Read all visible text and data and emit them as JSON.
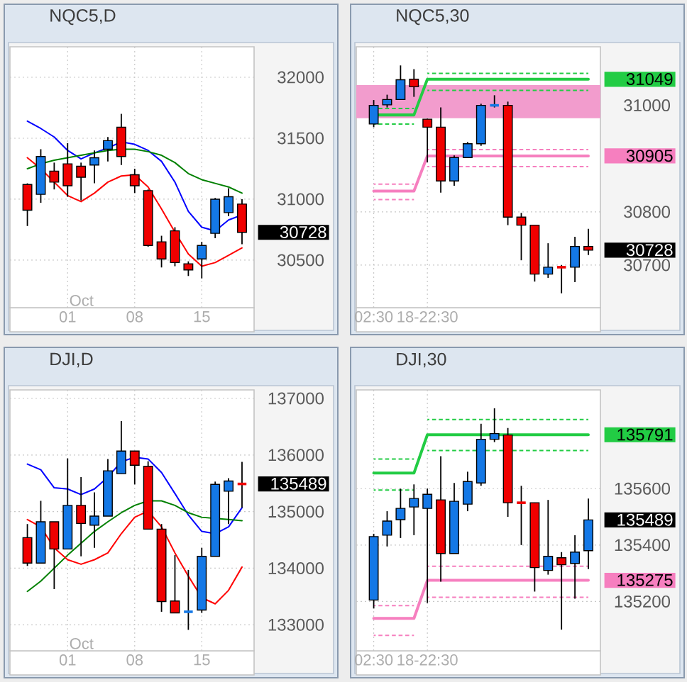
{
  "chart_data": [
    {
      "type": "candlestick",
      "title": "NQC5,D",
      "categories": [
        null,
        null,
        null,
        "01",
        null,
        null,
        null,
        null,
        "08",
        null,
        null,
        null,
        null,
        "15",
        null,
        null,
        null
      ],
      "ohlc": [
        [
          31120,
          31130,
          30780,
          30910
        ],
        [
          31040,
          31410,
          30970,
          31350
        ],
        [
          31230,
          31300,
          31080,
          31140
        ],
        [
          31290,
          31460,
          31020,
          31110
        ],
        [
          31270,
          31300,
          30990,
          31180
        ],
        [
          31280,
          31400,
          31130,
          31340
        ],
        [
          31410,
          31510,
          31310,
          31480
        ],
        [
          31590,
          31700,
          31280,
          31350
        ],
        [
          31200,
          31250,
          31050,
          31110
        ],
        [
          31070,
          31080,
          30610,
          30620
        ],
        [
          30650,
          30700,
          30440,
          30510
        ],
        [
          30740,
          30770,
          30450,
          30480
        ],
        [
          30470,
          30490,
          30370,
          30420
        ],
        [
          30510,
          30650,
          30350,
          30620
        ],
        [
          30720,
          31010,
          30680,
          31000
        ],
        [
          30890,
          31090,
          30860,
          31020
        ],
        [
          30960,
          31000,
          30630,
          30728
        ]
      ],
      "colors": [
        "#f00000",
        "#1478e6",
        "#f00000",
        "#f00000",
        "#f00000",
        "#1478e6",
        "#1478e6",
        "#f00000",
        "#f00000",
        "#f00000",
        "#f00000",
        "#f00000",
        "#f00000",
        "#1478e6",
        "#1478e6",
        "#1478e6",
        "#f00000"
      ],
      "series": [
        {
          "type": "line",
          "color": "#0000ff",
          "values": [
            31640,
            31580,
            31510,
            31400,
            31330,
            31380,
            31420,
            31470,
            31450,
            31400,
            31310,
            31140,
            30900,
            30770,
            30740,
            30830,
            30870
          ]
        },
        {
          "type": "line",
          "color": "#008000",
          "values": [
            31250,
            31290,
            31320,
            31340,
            31360,
            31380,
            31400,
            31410,
            31410,
            31390,
            31360,
            31300,
            31210,
            31160,
            31130,
            31100,
            31050
          ]
        },
        {
          "type": "line",
          "color": "#ff0000",
          "values": [
            31340,
            31250,
            31140,
            31030,
            30980,
            31050,
            31140,
            31190,
            31200,
            31100,
            30920,
            30730,
            30550,
            30450,
            30480,
            30540,
            30600
          ]
        }
      ],
      "ylim": [
        30110,
        32250
      ],
      "yticks": [
        30500,
        30728,
        31000,
        31500,
        32000
      ],
      "grid": true,
      "annotations": [
        "Oct"
      ]
    },
    {
      "type": "candlestick",
      "title": "NQC5,30",
      "categories": [
        "02:30",
        null,
        null,
        null,
        "18-22:30",
        null,
        null,
        null,
        null,
        null,
        null,
        null,
        null,
        null,
        null,
        null,
        null
      ],
      "ohlc": [
        [
          30965,
          31010,
          30959,
          31000
        ],
        [
          31001,
          31020,
          30996,
          31011
        ],
        [
          31011,
          31075,
          31011,
          31048
        ],
        [
          31049,
          31068,
          31016,
          31035
        ],
        [
          30974,
          30975,
          30893,
          30959
        ],
        [
          30959,
          30996,
          30836,
          30858
        ],
        [
          30858,
          30906,
          30849,
          30902
        ],
        [
          30902,
          30931,
          30902,
          30928
        ],
        [
          30928,
          31003,
          30924,
          31000
        ],
        [
          31000,
          31019,
          30996,
          31000
        ],
        [
          31000,
          31007,
          30775,
          30790
        ],
        [
          30790,
          30798,
          30709,
          30775
        ],
        [
          30775,
          30775,
          30669,
          30683
        ],
        [
          30683,
          30741,
          30676,
          30696
        ],
        [
          30696,
          30700,
          30647,
          30696
        ],
        [
          30696,
          30753,
          30668,
          30735
        ],
        [
          30735,
          30768,
          30719,
          30728
        ]
      ],
      "colors": [
        "#1478e6",
        "#1478e6",
        "#1478e6",
        "#f00000",
        "#f00000",
        "#f00000",
        "#1478e6",
        "#1478e6",
        "#1478e6",
        "#1478e6",
        "#f00000",
        "#f00000",
        "#f00000",
        "#1478e6",
        "#f00000",
        "#1478e6",
        "#f00000"
      ],
      "series": [
        {
          "type": "line",
          "color": "#22cc44",
          "line_style": "dashed",
          "values": [
            30994,
            30994,
            30994,
            30994,
            null,
            null,
            null,
            null,
            null,
            null,
            null,
            null,
            null,
            null,
            null,
            null,
            null
          ]
        },
        {
          "type": "line",
          "color": "#22cc44",
          "line_style": "dashed",
          "values": [
            30965,
            30965,
            30965,
            30965,
            null,
            null,
            null,
            null,
            null,
            null,
            null,
            null,
            null,
            null,
            null,
            null,
            null
          ]
        },
        {
          "type": "line",
          "color": "#22cc44",
          "line_style": "dashed",
          "values": [
            null,
            null,
            null,
            null,
            31060,
            31060,
            31060,
            31060,
            31060,
            31060,
            31060,
            31060,
            31060,
            31060,
            31060,
            31060,
            31060
          ]
        },
        {
          "type": "line",
          "color": "#22cc44",
          "line_style": "dashed",
          "values": [
            null,
            null,
            null,
            null,
            31028,
            31028,
            31028,
            31028,
            31028,
            31028,
            31028,
            31028,
            31028,
            31028,
            31028,
            31028,
            31028
          ]
        },
        {
          "type": "line",
          "color": "#22cc44",
          "line_style": "solid",
          "values": [
            30982,
            30982,
            30982,
            30982,
            31049,
            31049,
            31049,
            31049,
            31049,
            31049,
            31049,
            31049,
            31049,
            31049,
            31049,
            31049,
            31049
          ]
        },
        {
          "type": "line",
          "color": "#f67fbf",
          "line_style": "dashed",
          "values": [
            30852,
            30852,
            30852,
            30852,
            null,
            null,
            null,
            null,
            null,
            null,
            null,
            null,
            null,
            null,
            null,
            null,
            null
          ]
        },
        {
          "type": "line",
          "color": "#f67fbf",
          "line_style": "dashed",
          "values": [
            30823,
            30823,
            30823,
            30823,
            null,
            null,
            null,
            null,
            null,
            null,
            null,
            null,
            null,
            null,
            null,
            null,
            null
          ]
        },
        {
          "type": "line",
          "color": "#f67fbf",
          "line_style": "dashed",
          "values": [
            null,
            null,
            null,
            null,
            30917,
            30917,
            30917,
            30917,
            30917,
            30917,
            30917,
            30917,
            30917,
            30917,
            30917,
            30917,
            30917
          ]
        },
        {
          "type": "line",
          "color": "#f67fbf",
          "line_style": "dashed",
          "values": [
            null,
            null,
            null,
            null,
            30885,
            30885,
            30885,
            30885,
            30885,
            30885,
            30885,
            30885,
            30885,
            30885,
            30885,
            30885,
            30885
          ]
        },
        {
          "type": "line",
          "color": "#f67fbf",
          "line_style": "solid",
          "values": [
            30839,
            30839,
            30839,
            30839,
            30905,
            30905,
            30905,
            30905,
            30905,
            30905,
            30905,
            30905,
            30905,
            30905,
            30905,
            30905,
            30905
          ]
        }
      ],
      "bands": [
        {
          "axis": "y",
          "from": 30976,
          "to": 31038,
          "color": "#f29ccd"
        }
      ],
      "ylim": [
        30620,
        31110
      ],
      "yticks": [
        30700,
        30728,
        30800,
        30905,
        31000,
        31049
      ],
      "grid": true
    },
    {
      "type": "candlestick",
      "title": "DJI,D",
      "categories": [
        null,
        null,
        null,
        "01",
        null,
        null,
        null,
        null,
        "08",
        null,
        null,
        null,
        null,
        "15",
        null,
        null,
        null
      ],
      "ohlc": [
        [
          134540,
          134780,
          134040,
          134090
        ],
        [
          134090,
          135190,
          134090,
          134820
        ],
        [
          134820,
          134820,
          133630,
          134340
        ],
        [
          134340,
          135940,
          134340,
          135110
        ],
        [
          135110,
          135610,
          134210,
          134790
        ],
        [
          134760,
          135340,
          134360,
          134920
        ],
        [
          134920,
          135930,
          134920,
          135720
        ],
        [
          135670,
          136600,
          135670,
          136070
        ],
        [
          136070,
          136070,
          135480,
          135820
        ],
        [
          135800,
          135890,
          134690,
          134690
        ],
        [
          134690,
          134780,
          133230,
          133410
        ],
        [
          133420,
          134230,
          133210,
          133210
        ],
        [
          133230,
          133970,
          132910,
          133230
        ],
        [
          133260,
          134360,
          133210,
          134210
        ],
        [
          134210,
          135530,
          134210,
          135480
        ],
        [
          135360,
          135590,
          134780,
          135540
        ],
        [
          135489,
          135880,
          135070,
          135489
        ]
      ],
      "colors": [
        "#f00000",
        "#1478e6",
        "#f00000",
        "#1478e6",
        "#f00000",
        "#1478e6",
        "#1478e6",
        "#1478e6",
        "#f00000",
        "#f00000",
        "#f00000",
        "#f00000",
        "#1478e6",
        "#1478e6",
        "#1478e6",
        "#1478e6",
        "#f00000"
      ],
      "series": [
        {
          "type": "line",
          "color": "#0000ff",
          "values": [
            135840,
            135740,
            135420,
            135400,
            135300,
            135400,
            135610,
            135880,
            135960,
            135930,
            135690,
            135320,
            134940,
            134650,
            134610,
            134730,
            135070
          ]
        },
        {
          "type": "line",
          "color": "#008000",
          "values": [
            133590,
            133770,
            134000,
            134230,
            134440,
            134650,
            134820,
            134980,
            135110,
            135190,
            135190,
            135110,
            134980,
            134900,
            134880,
            134860,
            134840
          ]
        },
        {
          "type": "line",
          "color": "#ff0000",
          "values": [
            134860,
            134730,
            134360,
            134150,
            134070,
            134150,
            134270,
            134610,
            134900,
            135010,
            134730,
            134270,
            133860,
            133480,
            133370,
            133610,
            134020
          ]
        }
      ],
      "ylim": [
        132540,
        137150
      ],
      "yticks": [
        133000,
        134000,
        135000,
        135489,
        136000,
        137000
      ],
      "grid": true,
      "annotations": [
        "Oct"
      ]
    },
    {
      "type": "candlestick",
      "title": "DJI,30",
      "categories": [
        "02:30",
        null,
        null,
        null,
        "18-22:30",
        null,
        null,
        null,
        null,
        null,
        null,
        null,
        null,
        null,
        null,
        null,
        null
      ],
      "ohlc": [
        [
          135205,
          135440,
          135175,
          135430
        ],
        [
          135435,
          135520,
          135395,
          135485
        ],
        [
          135490,
          135600,
          135425,
          135530
        ],
        [
          135535,
          135615,
          135435,
          135565
        ],
        [
          135530,
          135600,
          135195,
          135580
        ],
        [
          135560,
          135715,
          135270,
          135370
        ],
        [
          135370,
          135620,
          135370,
          135555
        ],
        [
          135545,
          135660,
          135520,
          135625
        ],
        [
          135620,
          135830,
          135610,
          135775
        ],
        [
          135775,
          135885,
          135765,
          135795
        ],
        [
          135790,
          135815,
          135500,
          135550
        ],
        [
          135550,
          135610,
          135400,
          135550
        ],
        [
          135550,
          135550,
          135235,
          135320
        ],
        [
          135310,
          135560,
          135295,
          135360
        ],
        [
          135355,
          135375,
          135100,
          135330
        ],
        [
          135335,
          135435,
          135210,
          135375
        ],
        [
          135380,
          135565,
          135315,
          135489
        ]
      ],
      "colors": [
        "#1478e6",
        "#1478e6",
        "#1478e6",
        "#1478e6",
        "#1478e6",
        "#f00000",
        "#1478e6",
        "#1478e6",
        "#1478e6",
        "#1478e6",
        "#f00000",
        "#f00000",
        "#f00000",
        "#1478e6",
        "#f00000",
        "#1478e6",
        "#1478e6"
      ],
      "series": [
        {
          "type": "line",
          "color": "#22cc44",
          "line_style": "dashed",
          "values": [
            135705,
            135705,
            135705,
            135705,
            null,
            null,
            null,
            null,
            null,
            null,
            null,
            null,
            null,
            null,
            null,
            null,
            null
          ]
        },
        {
          "type": "line",
          "color": "#22cc44",
          "line_style": "dashed",
          "values": [
            135595,
            135595,
            135595,
            135595,
            null,
            null,
            null,
            null,
            null,
            null,
            null,
            null,
            null,
            null,
            null,
            null,
            null
          ]
        },
        {
          "type": "line",
          "color": "#22cc44",
          "line_style": "dashed",
          "values": [
            null,
            null,
            null,
            null,
            135845,
            135845,
            135845,
            135845,
            135845,
            135845,
            135845,
            135845,
            135845,
            135845,
            135845,
            135845,
            135845
          ]
        },
        {
          "type": "line",
          "color": "#22cc44",
          "line_style": "dashed",
          "values": [
            null,
            null,
            null,
            null,
            135735,
            135735,
            135735,
            135735,
            135735,
            135735,
            135735,
            135735,
            135735,
            135735,
            135735,
            135735,
            135735
          ]
        },
        {
          "type": "line",
          "color": "#22cc44",
          "line_style": "solid",
          "values": [
            135655,
            135655,
            135655,
            135655,
            135791,
            135791,
            135791,
            135791,
            135791,
            135791,
            135791,
            135791,
            135791,
            135791,
            135791,
            135791,
            135791
          ]
        },
        {
          "type": "line",
          "color": "#f67fbf",
          "line_style": "dashed",
          "values": [
            135185,
            135185,
            135185,
            135185,
            null,
            null,
            null,
            null,
            null,
            null,
            null,
            null,
            null,
            null,
            null,
            null,
            null
          ]
        },
        {
          "type": "line",
          "color": "#f67fbf",
          "line_style": "dashed",
          "values": [
            135080,
            135080,
            135080,
            135080,
            null,
            null,
            null,
            null,
            null,
            null,
            null,
            null,
            null,
            null,
            null,
            null,
            null
          ]
        },
        {
          "type": "line",
          "color": "#f67fbf",
          "line_style": "dashed",
          "values": [
            null,
            null,
            null,
            null,
            135325,
            135325,
            135325,
            135325,
            135325,
            135325,
            135325,
            135325,
            135325,
            135325,
            135325,
            135325,
            135325
          ]
        },
        {
          "type": "line",
          "color": "#f67fbf",
          "line_style": "dashed",
          "values": [
            null,
            null,
            null,
            null,
            135215,
            135215,
            135215,
            135215,
            135215,
            135215,
            135215,
            135215,
            135215,
            135215,
            135215,
            135215,
            135215
          ]
        },
        {
          "type": "line",
          "color": "#f67fbf",
          "line_style": "solid",
          "values": [
            135140,
            135140,
            135140,
            135140,
            135275,
            135275,
            135275,
            135275,
            135275,
            135275,
            135275,
            135275,
            135275,
            135275,
            135275,
            135275,
            135275
          ]
        }
      ],
      "ylim": [
        135025,
        135950
      ],
      "yticks": [
        135200,
        135275,
        135400,
        135489,
        135600,
        135791
      ],
      "grid": true
    }
  ]
}
